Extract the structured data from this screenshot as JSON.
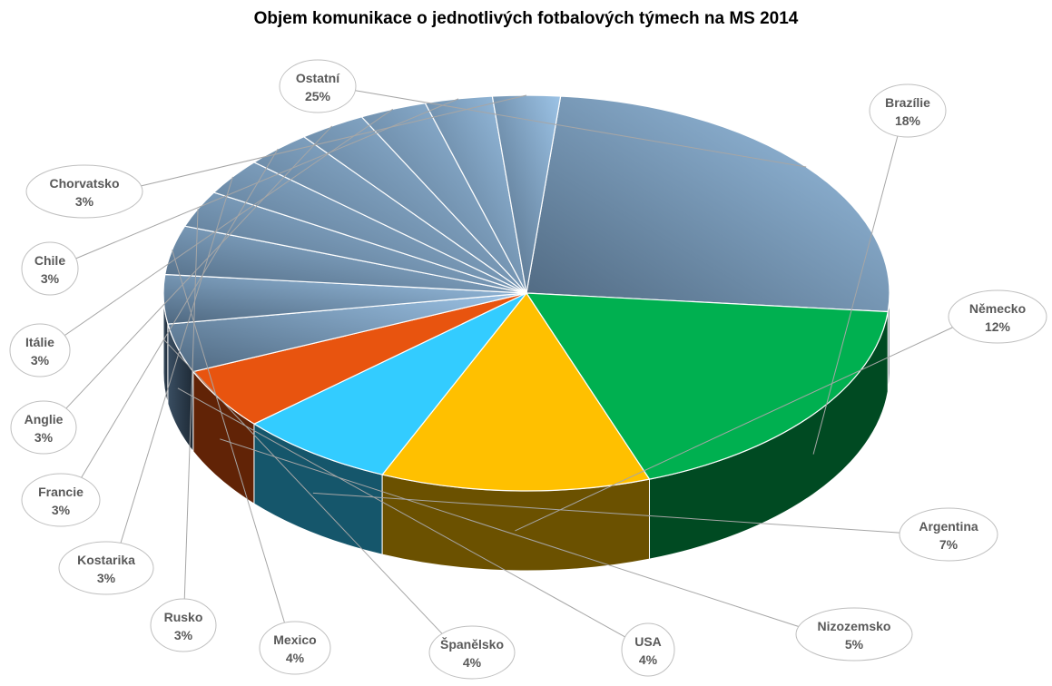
{
  "chart_data": {
    "type": "pie",
    "title": "Objem komunikace o jednotlivých fotbalových týmech na MS 2014",
    "categories": [
      "Ostatní",
      "Brazílie",
      "Německo",
      "Argentina",
      "Nizozemsko",
      "USA",
      "Španělsko",
      "Mexico",
      "Rusko",
      "Kostarika",
      "Francie",
      "Anglie",
      "Itálie",
      "Chile",
      "Chorvatsko"
    ],
    "values": [
      25,
      18,
      12,
      7,
      5,
      4,
      4,
      4,
      3,
      3,
      3,
      3,
      3,
      3,
      3
    ],
    "labels": [
      "25%",
      "18%",
      "12%",
      "7%",
      "5%",
      "4%",
      "4%",
      "4%",
      "3%",
      "3%",
      "3%",
      "3%",
      "3%",
      "3%",
      "3%"
    ],
    "colors": {
      "Brazílie": "#00b050",
      "Německo": "#ffc000",
      "Argentina": "#33ccff",
      "Nizozemsko": "#e8540f",
      "others": "#7f9fbf"
    },
    "legend": "data-callouts",
    "style": "3d-pie"
  }
}
